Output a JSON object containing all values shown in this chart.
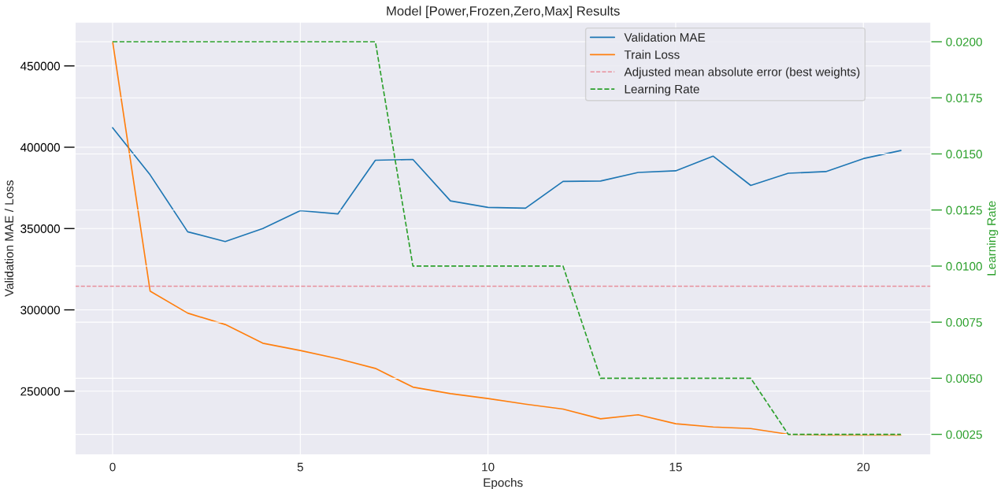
{
  "chart_data": {
    "type": "line",
    "title": "Model [Power,Frozen,Zero,Max] Results",
    "xlabel": "Epochs",
    "ylabel": "Validation MAE / Loss",
    "y2label": "Learning Rate",
    "x": [
      0,
      1,
      2,
      3,
      4,
      5,
      6,
      7,
      8,
      9,
      10,
      11,
      12,
      13,
      14,
      15,
      16,
      17,
      18,
      19,
      20,
      21
    ],
    "series": [
      {
        "name": "Validation MAE",
        "color": "#1f77b4",
        "values": [
          412000,
          383000,
          348000,
          342000,
          350000,
          361000,
          359000,
          392000,
          392500,
          367000,
          363000,
          362500,
          379000,
          379200,
          384500,
          385500,
          394500,
          376500,
          384000,
          385000,
          393000,
          398000
        ]
      },
      {
        "name": "Train Loss",
        "color": "#ff7f0e",
        "values": [
          465000,
          311500,
          298000,
          291000,
          279500,
          275000,
          270000,
          264000,
          252500,
          248500,
          245500,
          242000,
          239000,
          233000,
          235500,
          230000,
          228000,
          227000,
          223500,
          223000,
          223000,
          223000
        ]
      },
      {
        "name": "Learning Rate",
        "color": "#2ca02c",
        "axis": "y2",
        "line_style": "dashed",
        "values": [
          0.02,
          0.02,
          0.02,
          0.02,
          0.02,
          0.02,
          0.02,
          0.02,
          0.01,
          0.01,
          0.01,
          0.01,
          0.01,
          0.005,
          0.005,
          0.005,
          0.005,
          0.005,
          0.0025,
          0.0025,
          0.0025,
          0.0025
        ]
      }
    ],
    "ref_lines": [
      {
        "axis": "y",
        "value": 314500,
        "label": "Adjusted mean absolute error (best weights)",
        "color": "#e8909c",
        "line_style": "dashed"
      }
    ],
    "xlim": [
      -1.0,
      21.8
    ],
    "xticks": [
      0,
      5,
      10,
      15,
      20
    ],
    "ylim": [
      210900,
      477000
    ],
    "yticks": [
      250000,
      300000,
      350000,
      400000,
      450000
    ],
    "y2lim": [
      0.00159,
      0.02088
    ],
    "y2ticks": [
      {
        "value": 0.0025,
        "label": "0.0025"
      },
      {
        "value": 0.005,
        "label": "0.0050"
      },
      {
        "value": 0.0075,
        "label": "0.0075"
      },
      {
        "value": 0.01,
        "label": "0.0100"
      },
      {
        "value": 0.0125,
        "label": "0.0125"
      },
      {
        "value": 0.015,
        "label": "0.0150"
      },
      {
        "value": 0.0175,
        "label": "0.0175"
      },
      {
        "value": 0.02,
        "label": "0.0200"
      }
    ],
    "grid": true,
    "legend": "top right"
  }
}
